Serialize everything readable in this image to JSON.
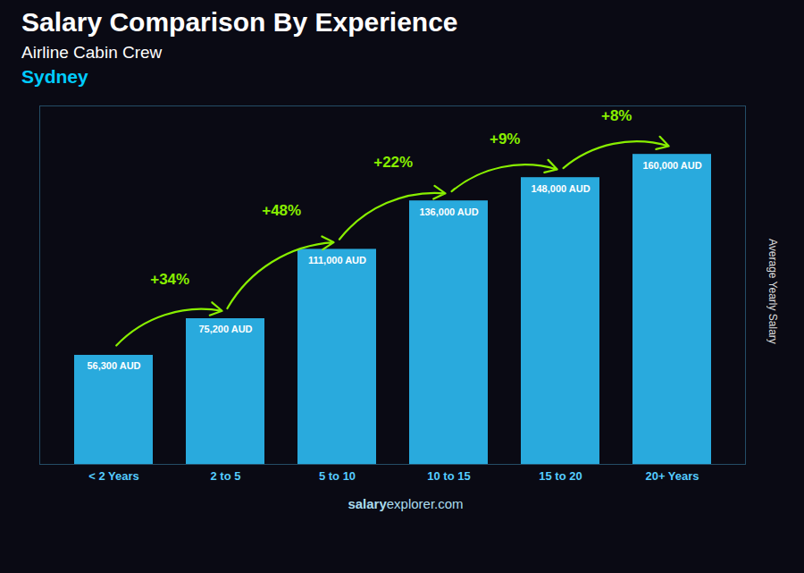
{
  "chart_data": {
    "type": "bar",
    "title": "Salary Comparison By Experience",
    "subtitle": "Airline Cabin Crew",
    "subtitle2": "Sydney",
    "ylabel": "Average Yearly Salary",
    "categories": [
      "< 2 Years",
      "2 to 5",
      "5 to 10",
      "10 to 15",
      "15 to 20",
      "20+ Years"
    ],
    "values": [
      56300,
      75200,
      111000,
      136000,
      148000,
      160000
    ],
    "value_labels": [
      "56,300 AUD",
      "75,200 AUD",
      "111,000 AUD",
      "136,000 AUD",
      "148,000 AUD",
      "160,000 AUD"
    ],
    "data_labels": true,
    "color": "#29AADD",
    "ylim": [
      0,
      185000
    ],
    "yticks": [],
    "tick_labels": "x",
    "grid": false,
    "annotations": [
      {
        "text": "+34%",
        "color": "#88EE00"
      },
      {
        "text": "+48%",
        "color": "#88EE00"
      },
      {
        "text": "+22%",
        "color": "#88EE00"
      },
      {
        "text": "+9%",
        "color": "#88EE00"
      },
      {
        "text": "+8%",
        "color": "#88EE00"
      }
    ],
    "footer": [
      "salary",
      "explorer.com"
    ]
  }
}
